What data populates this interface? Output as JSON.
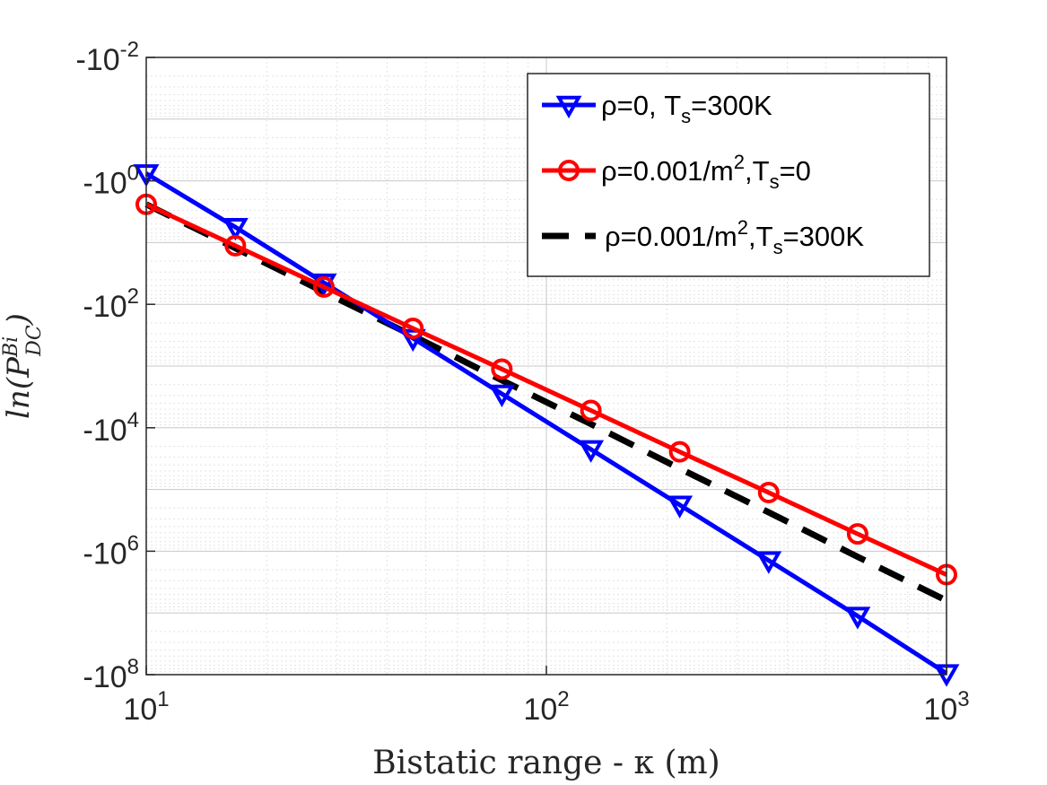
{
  "chart_data": {
    "type": "line",
    "title": "",
    "xlabel": "Bistatic range - κ (m)",
    "ylabel": "ln(P",
    "ylabel_sup": "Bi",
    "ylabel_sub": "DC",
    "ylabel_close": ")",
    "xscale": "log",
    "yscale": "log",
    "xlim": [
      10,
      1000
    ],
    "ylim_exponent": [
      -2,
      8
    ],
    "grid": true,
    "legend_position": "top-right",
    "x_ticks": [
      {
        "value": 10,
        "base": "10",
        "exp": "1"
      },
      {
        "value": 100,
        "base": "10",
        "exp": "2"
      },
      {
        "value": 1000,
        "base": "10",
        "exp": "3"
      }
    ],
    "y_ticks": [
      {
        "exp_value": -2,
        "base": "-10",
        "exp": "-2"
      },
      {
        "exp_value": 0,
        "base": "-10",
        "exp": "0"
      },
      {
        "exp_value": 2,
        "base": "-10",
        "exp": "2"
      },
      {
        "exp_value": 4,
        "base": "-10",
        "exp": "4"
      },
      {
        "exp_value": 6,
        "base": "-10",
        "exp": "6"
      },
      {
        "exp_value": 8,
        "base": "-10",
        "exp": "8"
      }
    ],
    "x": [
      10,
      16.7,
      27.8,
      46.4,
      77.4,
      129.2,
      215.4,
      359.4,
      599.5,
      1000
    ],
    "series": [
      {
        "name": "ρ=0, T_s=300K",
        "legend_parts": [
          "ρ=0, T",
          "s",
          "=300K"
        ],
        "color": "#0000ff",
        "marker": "triangle-down",
        "line": "solid",
        "y_exponent": [
          -0.12,
          0.75,
          1.65,
          2.55,
          3.45,
          4.35,
          5.25,
          6.15,
          7.05,
          7.98
        ]
      },
      {
        "name": "ρ=0.001/m^2,T_s=0",
        "legend_parts": [
          "ρ=0.001/m",
          "2",
          ",T",
          "s",
          "=0"
        ],
        "color": "#ff0000",
        "marker": "circle",
        "line": "solid",
        "y_exponent": [
          0.38,
          1.05,
          1.72,
          2.39,
          3.05,
          3.72,
          4.39,
          5.05,
          5.72,
          6.38
        ]
      },
      {
        "name": "ρ=0.001/m^2,T_s=300K",
        "legend_parts": [
          "ρ=0.001/m",
          "2",
          ",T",
          "s",
          "=300K"
        ],
        "color": "#000000",
        "marker": "none",
        "line": "dashed",
        "y_exponent": [
          0.38,
          1.09,
          1.8,
          2.51,
          3.23,
          3.94,
          4.66,
          5.37,
          6.09,
          6.8
        ]
      }
    ]
  }
}
